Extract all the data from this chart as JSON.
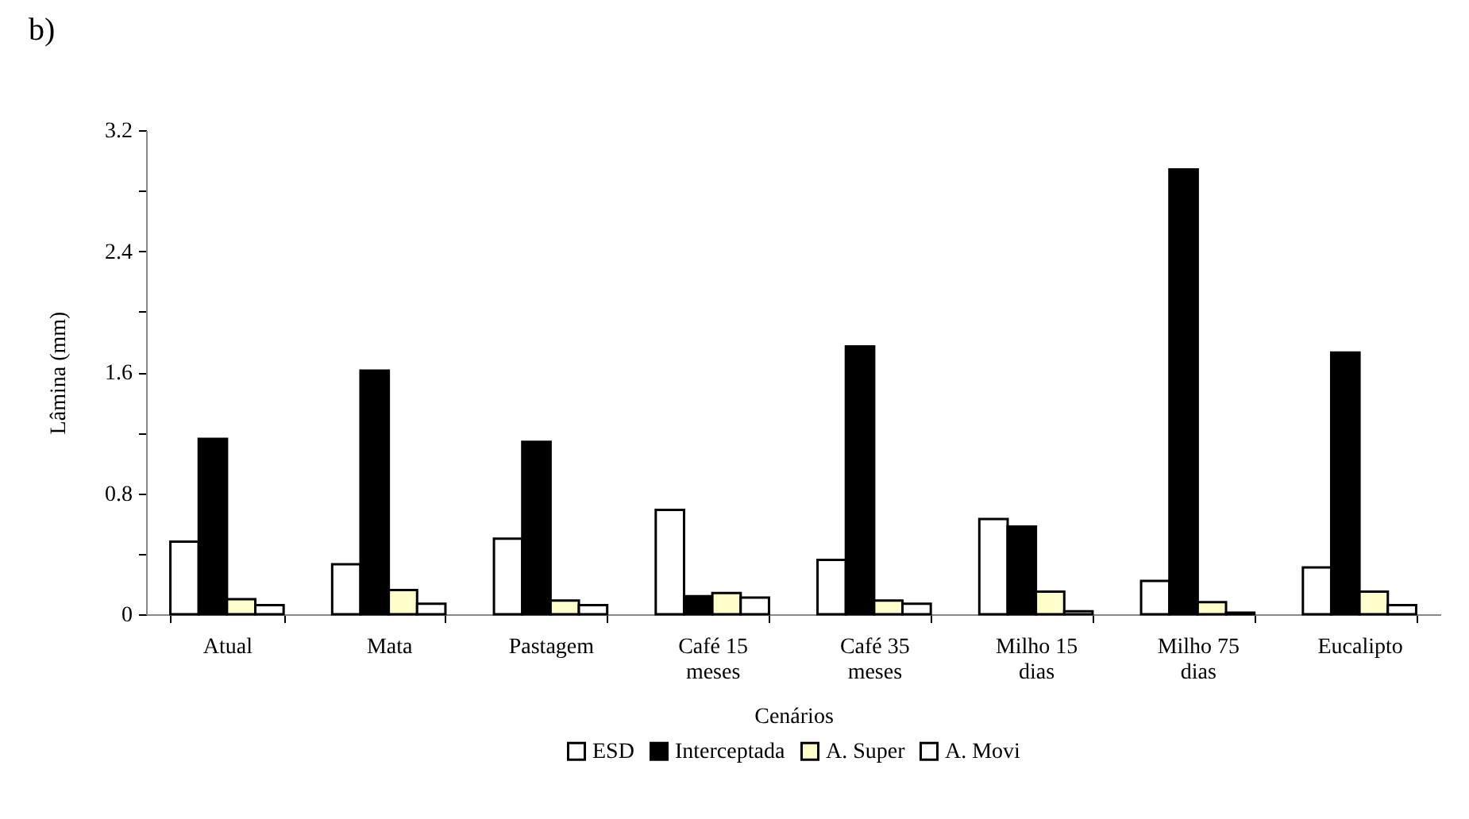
{
  "chart_data": {
    "type": "bar",
    "xlabel": "Cenários",
    "ylabel": "Lâmina (mm)",
    "annotations": [
      "b)"
    ],
    "categories": [
      "Atual",
      "Mata",
      "Pastagem",
      "Café 15 meses",
      "Café 35 meses",
      "Milho 15 dias",
      "Milho 75 dias",
      "Eucalipto"
    ],
    "series": [
      {
        "name": "ESD",
        "color": "#ffffff",
        "values": [
          0.48,
          0.33,
          0.5,
          0.69,
          0.36,
          0.63,
          0.22,
          0.31
        ]
      },
      {
        "name": "Interceptada",
        "color": "#000000",
        "values": [
          1.16,
          1.61,
          1.14,
          0.12,
          1.77,
          0.58,
          2.94,
          1.73
        ]
      },
      {
        "name": "A. Super",
        "color": "#ffffcc",
        "values": [
          0.1,
          0.16,
          0.09,
          0.14,
          0.09,
          0.15,
          0.08,
          0.15
        ]
      },
      {
        "name": "A. Movi",
        "color": "#ffffff",
        "values": [
          0.06,
          0.07,
          0.06,
          0.11,
          0.07,
          0.02,
          0.01,
          0.06
        ]
      }
    ],
    "ylim": [
      0,
      3.2
    ],
    "yticks": [
      0,
      {
        "value": 0.4,
        "label": null
      },
      0.8,
      {
        "value": 1.2,
        "label": null
      },
      1.6,
      {
        "value": 2.0,
        "label": null
      },
      2.4,
      {
        "value": 2.8,
        "label": null
      },
      3.2
    ],
    "grid": false,
    "legend": "bottom"
  }
}
